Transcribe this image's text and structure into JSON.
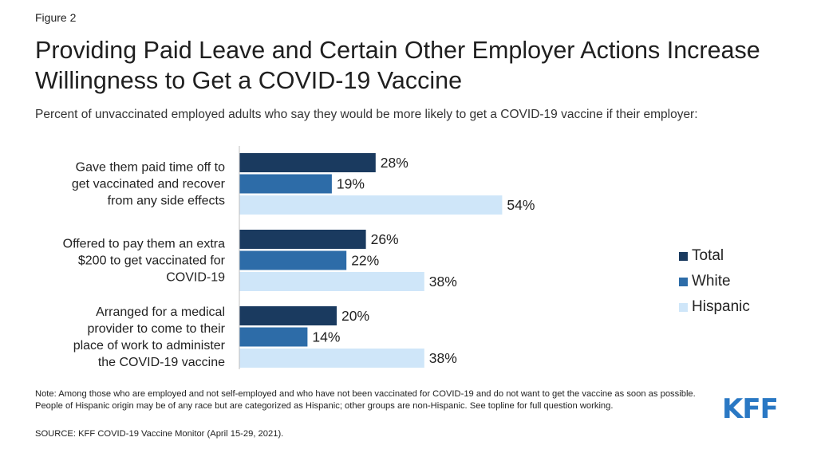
{
  "figure_label": "Figure 2",
  "title": "Providing Paid Leave and Certain Other Employer Actions Increase Willingness to Get a COVID-19 Vaccine",
  "subtitle": "Percent of unvaccinated employed adults who say they would be more likely to get a COVID-19 vaccine if their employer:",
  "note": "Note: Among those who are employed and not self-employed and who have not been vaccinated for COVID-19 and do not want to get the vaccine as soon as possible. People of Hispanic origin may be of any race but are categorized as Hispanic; other groups are non-Hispanic. See topline for full question working.",
  "source": "SOURCE: KFF COVID-19 Vaccine Monitor (April 15-29, 2021).",
  "logo_text": "KFF",
  "colors": {
    "Total": "#1a3a5f",
    "White": "#2d6ca8",
    "Hispanic": "#cfe6f9"
  },
  "chart_data": {
    "type": "bar",
    "orientation": "horizontal",
    "categories": [
      [
        "Gave them paid time off to",
        "get vaccinated and recover",
        "from any side effects"
      ],
      [
        "Offered to pay them an extra",
        "$200 to get vaccinated for",
        "COVID-19"
      ],
      [
        "Arranged for a medical",
        "provider to come to their",
        "place of work to administer",
        "the COVID-19 vaccine"
      ]
    ],
    "series": [
      {
        "name": "Total",
        "values": [
          28,
          26,
          20
        ]
      },
      {
        "name": "White",
        "values": [
          19,
          22,
          14
        ]
      },
      {
        "name": "Hispanic",
        "values": [
          54,
          38,
          38
        ]
      }
    ],
    "value_suffix": "%",
    "legend_position": "right",
    "grid": false
  }
}
